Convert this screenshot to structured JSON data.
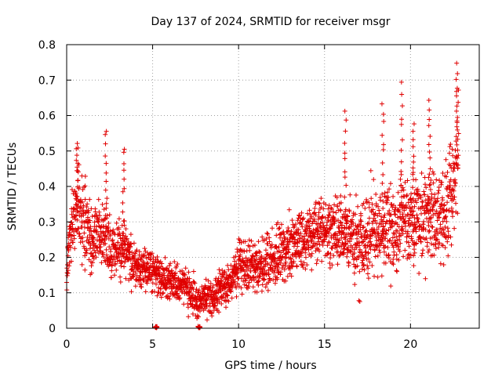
{
  "chart_data": {
    "type": "scatter",
    "title": "Day 137 of 2024, SRMTID for receiver msgr",
    "xlabel": "GPS time / hours",
    "ylabel": "SRMTID / TECUs",
    "xlim": [
      0,
      24
    ],
    "ylim": [
      0,
      0.8
    ],
    "x_ticks": [
      0,
      5,
      10,
      15,
      20
    ],
    "x_tick_labels": [
      "0",
      "5",
      "10",
      "15",
      "20"
    ],
    "y_ticks": [
      0,
      0.1,
      0.2,
      0.3,
      0.4,
      0.5,
      0.6,
      0.7,
      0.8
    ],
    "y_tick_labels": [
      "0",
      "0.1",
      "0.2",
      "0.3",
      "0.4",
      "0.5",
      "0.6",
      "0.7",
      "0.8"
    ],
    "grid": true,
    "marker": "+",
    "color": "#e00000",
    "series": [
      {
        "name": "SRMTID",
        "trend": {
          "x": [
            0,
            0.3,
            0.7,
            1.0,
            1.5,
            2.2,
            2.6,
            3.3,
            4.0,
            5.0,
            6.0,
            7.0,
            7.6,
            8.5,
            9.5,
            10.0,
            11.0,
            12.0,
            13.0,
            14.0,
            15.0,
            16.0,
            17.0,
            18.0,
            19.0,
            20.0,
            21.0,
            22.0,
            22.8
          ],
          "y": [
            0.15,
            0.3,
            0.36,
            0.3,
            0.25,
            0.27,
            0.22,
            0.22,
            0.18,
            0.16,
            0.13,
            0.12,
            0.07,
            0.09,
            0.13,
            0.18,
            0.17,
            0.2,
            0.22,
            0.27,
            0.28,
            0.27,
            0.24,
            0.28,
            0.27,
            0.3,
            0.32,
            0.3,
            0.48
          ]
        },
        "spread": {
          "x": [
            0,
            0.7,
            2.0,
            4.0,
            7.0,
            8.0,
            10.0,
            12.0,
            15.0,
            17.0,
            19.0,
            21.0,
            22.8
          ],
          "y": [
            0.06,
            0.09,
            0.07,
            0.05,
            0.04,
            0.035,
            0.05,
            0.06,
            0.07,
            0.09,
            0.1,
            0.1,
            0.14
          ]
        },
        "peaks": [
          {
            "x": 0.6,
            "y": 0.52
          },
          {
            "x": 2.3,
            "y": 0.56
          },
          {
            "x": 3.3,
            "y": 0.51
          },
          {
            "x": 5.2,
            "y": 0.0
          },
          {
            "x": 7.7,
            "y": 0.0
          },
          {
            "x": 16.2,
            "y": 0.61
          },
          {
            "x": 18.4,
            "y": 0.63
          },
          {
            "x": 19.5,
            "y": 0.69
          },
          {
            "x": 20.2,
            "y": 0.58
          },
          {
            "x": 21.1,
            "y": 0.65
          },
          {
            "x": 22.7,
            "y": 0.74
          }
        ],
        "count": 2600
      }
    ]
  }
}
